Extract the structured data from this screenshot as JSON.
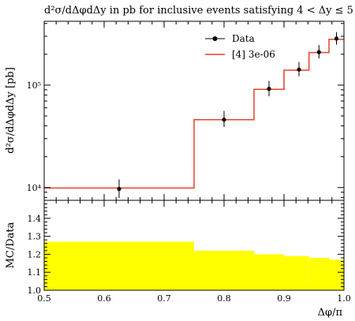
{
  "chart_data": {
    "type": "line",
    "title": "d²σ/dΔφdΔy in pb for inclusive events satisfying 4 < Δy ≤ 5",
    "xlabel": "Δφ/π",
    "xlim": [
      0.5,
      1.0
    ],
    "x_ticks": [
      {
        "v": 0.5,
        "label": "0.5"
      },
      {
        "v": 0.6,
        "label": "0.6"
      },
      {
        "v": 0.7,
        "label": "0.7"
      },
      {
        "v": 0.8,
        "label": "0.8"
      },
      {
        "v": 0.9,
        "label": "0.9"
      },
      {
        "v": 1.0,
        "label": "1.0"
      }
    ],
    "main": {
      "ylabel": "d²σ/dΔφdΔy [pb]",
      "yscale": "log",
      "ylim": [
        7500,
        420000
      ],
      "y_major_ticks": [
        {
          "v": 10000,
          "label": "10⁴"
        },
        {
          "v": 100000,
          "label": "10⁵"
        }
      ],
      "series": [
        {
          "name": "Data",
          "kind": "points",
          "color": "#000000",
          "points": [
            {
              "x": 0.625,
              "y": 9700,
              "ylo": 7900,
              "yhi": 12000
            },
            {
              "x": 0.8,
              "y": 46000,
              "ylo": 39000,
              "yhi": 56000
            },
            {
              "x": 0.875,
              "y": 92000,
              "ylo": 78000,
              "yhi": 110000
            },
            {
              "x": 0.925,
              "y": 142000,
              "ylo": 122000,
              "yhi": 168000
            },
            {
              "x": 0.9583,
              "y": 210000,
              "ylo": 182000,
              "yhi": 246000
            },
            {
              "x": 0.9875,
              "y": 285000,
              "ylo": 248000,
              "yhi": 330000
            }
          ]
        },
        {
          "name": "[4] 3e-06",
          "kind": "step",
          "color": "#e8402a",
          "bins": [
            {
              "lo": 0.5,
              "hi": 0.75,
              "y": 9900
            },
            {
              "lo": 0.75,
              "hi": 0.85,
              "y": 46000
            },
            {
              "lo": 0.85,
              "hi": 0.9,
              "y": 91000
            },
            {
              "lo": 0.9,
              "hi": 0.9417,
              "y": 140000
            },
            {
              "lo": 0.9417,
              "hi": 0.975,
              "y": 208000
            },
            {
              "lo": 0.975,
              "hi": 1.0,
              "y": 280000
            }
          ]
        }
      ],
      "legend_position": "top-right"
    },
    "ratio": {
      "ylabel": "MC/Data",
      "ylim": [
        1.0,
        1.5
      ],
      "y_ticks": [
        {
          "v": 1.0,
          "label": "1.0"
        },
        {
          "v": 1.1,
          "label": "1.1"
        },
        {
          "v": 1.2,
          "label": "1.2"
        },
        {
          "v": 1.3,
          "label": "1.3"
        },
        {
          "v": 1.4,
          "label": "1.4"
        }
      ],
      "band_color": "#ffff00",
      "bins": [
        {
          "lo": 0.5,
          "hi": 0.75,
          "y": 1.27
        },
        {
          "lo": 0.75,
          "hi": 0.85,
          "y": 1.22
        },
        {
          "lo": 0.85,
          "hi": 0.9,
          "y": 1.2
        },
        {
          "lo": 0.9,
          "hi": 0.9417,
          "y": 1.19
        },
        {
          "lo": 0.9417,
          "hi": 0.975,
          "y": 1.18
        },
        {
          "lo": 0.975,
          "hi": 1.0,
          "y": 1.17
        }
      ]
    }
  }
}
